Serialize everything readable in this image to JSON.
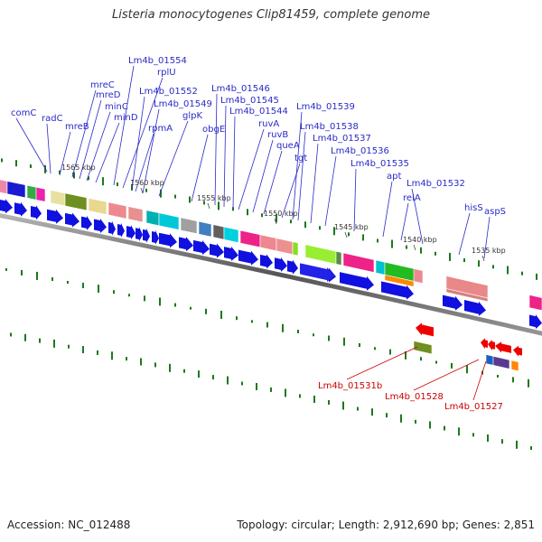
{
  "title": "Listeria monocytogenes Clip81459, complete genome",
  "footer": {
    "accession": "Accession: NC_012488",
    "info": "Topology: circular; Length: 2,912,690 bp; Genes: 2,851"
  },
  "scale_labels": [
    "1565 kbp",
    "1560 kbp",
    "1555 kbp",
    "1550 kbp",
    "1545 kbp",
    "1540 kbp",
    "1535 kbp"
  ],
  "gene_labels": [
    "comC",
    "radC",
    "mreB",
    "mreC",
    "mreD",
    "minC",
    "minD",
    "Lm4b_01554",
    "rplU",
    "Lm4b_01552",
    "rpmA",
    "Lm4b_01549",
    "glpK",
    "obgE",
    "Lm4b_01546",
    "Lm4b_01545",
    "Lm4b_01544",
    "ruvA",
    "ruvB",
    "queA",
    "tgt",
    "Lm4b_01539",
    "Lm4b_01538",
    "Lm4b_01537",
    "Lm4b_01536",
    "Lm4b_01535",
    "apt",
    "relA",
    "Lm4b_01532",
    "hisS",
    "aspS"
  ],
  "rna_labels": [
    "Lm4b_01531b",
    "Lm4b_01528",
    "Lm4b_01527"
  ],
  "colors": {
    "backbone": "#666666",
    "cds": "#1010e0",
    "rna": "#ee0000",
    "label_blue": "#2a2ac8",
    "label_red": "#cc0000",
    "tick": "#1a7a1a"
  }
}
